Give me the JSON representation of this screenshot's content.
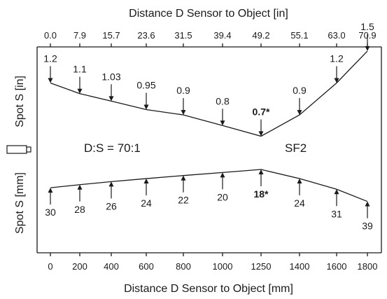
{
  "chart_data": {
    "type": "line",
    "top": {
      "title": "Distance D Sensor to Object [in]",
      "ylabel": "Spot S [in]",
      "x_ticks": [
        "0.0",
        "7.9",
        "15.7",
        "23.6",
        "31.5",
        "39.4",
        "49.2",
        "55.1",
        "63.0",
        "70.9"
      ],
      "points": [
        {
          "x": 0.0,
          "y": 1.2,
          "label": "1.2"
        },
        {
          "x": 7.9,
          "y": 1.1,
          "label": "1.1"
        },
        {
          "x": 15.7,
          "y": 1.03,
          "label": "1.03"
        },
        {
          "x": 23.6,
          "y": 0.95,
          "label": "0.95"
        },
        {
          "x": 31.5,
          "y": 0.9,
          "label": "0.9"
        },
        {
          "x": 39.4,
          "y": 0.8,
          "label": "0.8"
        },
        {
          "x": 49.2,
          "y": 0.7,
          "label": "0.7*",
          "bold": true
        },
        {
          "x": 55.1,
          "y": 0.9,
          "label": "0.9"
        },
        {
          "x": 63.0,
          "y": 1.2,
          "label": "1.2"
        },
        {
          "x": 70.9,
          "y": 1.5,
          "label": "1.5"
        }
      ]
    },
    "bottom": {
      "xlabel": "Distance D Sensor to Object [mm]",
      "ylabel": "Spot S [mm]",
      "x_ticks": [
        "0",
        "200",
        "400",
        "600",
        "800",
        "1000",
        "1250",
        "1400",
        "1600",
        "1800"
      ],
      "points": [
        {
          "x": 0,
          "y": 30,
          "label": "30"
        },
        {
          "x": 200,
          "y": 28,
          "label": "28"
        },
        {
          "x": 400,
          "y": 26,
          "label": "26"
        },
        {
          "x": 600,
          "y": 24,
          "label": "24"
        },
        {
          "x": 800,
          "y": 22,
          "label": "22"
        },
        {
          "x": 1000,
          "y": 20,
          "label": "20"
        },
        {
          "x": 1250,
          "y": 18,
          "label": "18*",
          "bold": true
        },
        {
          "x": 1400,
          "y": 24,
          "label": "24"
        },
        {
          "x": 1600,
          "y": 31,
          "label": "31"
        },
        {
          "x": 1800,
          "y": 39,
          "label": "39"
        }
      ]
    },
    "ratio_text": "D:S = 70:1",
    "model_text": "SF2"
  }
}
